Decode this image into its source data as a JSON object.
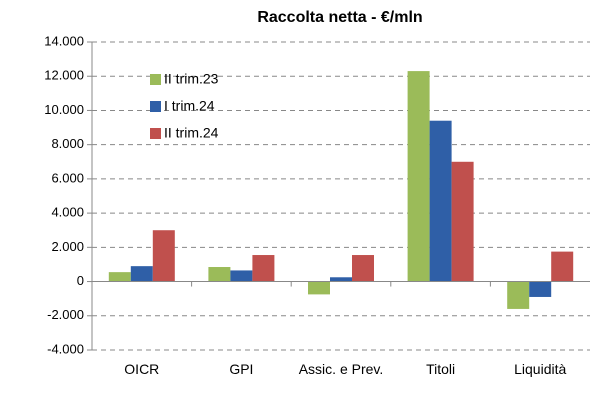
{
  "chart_data": {
    "type": "bar",
    "title": "Raccolta netta - €/mln",
    "categories": [
      "OICR",
      "GPI",
      "Assic. e Prev.",
      "Titoli",
      "Liquidità"
    ],
    "series": [
      {
        "name": "II trim.23",
        "color": "#9bbb59",
        "values": [
          550,
          850,
          -750,
          12300,
          -1600
        ]
      },
      {
        "name": "I trim.24",
        "color": "#2f5fa7",
        "values": [
          900,
          650,
          250,
          9400,
          -900
        ]
      },
      {
        "name": "II trim.24",
        "color": "#c0504d",
        "values": [
          3000,
          1550,
          1550,
          7000,
          1750
        ]
      }
    ],
    "ylim": [
      -4000,
      14000
    ],
    "yticks": [
      {
        "value": -4000,
        "label": "-4.000"
      },
      {
        "value": -2000,
        "label": "-2.000"
      },
      0,
      {
        "value": 2000,
        "label": "2.000"
      },
      {
        "value": 4000,
        "label": "4.000"
      },
      {
        "value": 6000,
        "label": "6.000"
      },
      {
        "value": 8000,
        "label": "8.000"
      },
      {
        "value": 10000,
        "label": "10.000"
      },
      {
        "value": 12000,
        "label": "12.000"
      },
      {
        "value": 14000,
        "label": "14.000"
      }
    ],
    "grid": true,
    "legend": "upper left"
  }
}
